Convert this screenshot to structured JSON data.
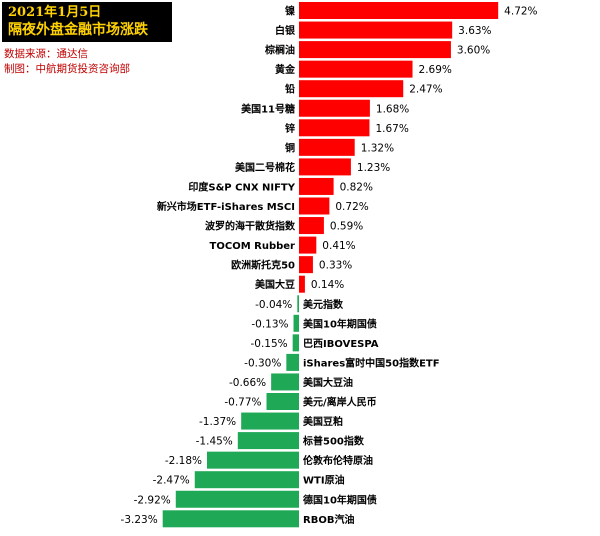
{
  "header": {
    "date": "2021年1月5日",
    "title": "隔夜外盘金融市场涨跌",
    "source": "数据来源：通达信",
    "maker": "制图：中航期货投资咨询部"
  },
  "colors": {
    "positive": "#ff0000",
    "negative": "#1fa855",
    "title_bg": "#000000",
    "title_fg": "#ffd200",
    "source_text": "#c00000"
  },
  "chart_data": {
    "type": "bar",
    "orientation": "horizontal",
    "value_unit": "%",
    "grid": false,
    "legend": "none",
    "categories": [
      "镍",
      "白银",
      "棕榈油",
      "黄金",
      "铅",
      "美国11号糖",
      "锌",
      "铜",
      "美国二号棉花",
      "印度S&P CNX NIFTY",
      "新兴市场ETF-iShares MSCI",
      "波罗的海干散货指数",
      "TOCOM Rubber",
      "欧洲斯托克50",
      "美国大豆",
      "美元指数",
      "美国10年期国债",
      "巴西IBOVESPA",
      "iShares富时中国50指数ETF",
      "美国大豆油",
      "美元/离岸人民币",
      "美国豆粕",
      "标普500指数",
      "伦敦布伦特原油",
      "WTI原油",
      "德国10年期国债",
      "RBOB汽油"
    ],
    "values": [
      4.72,
      3.63,
      3.6,
      2.69,
      2.47,
      1.68,
      1.67,
      1.32,
      1.23,
      0.82,
      0.72,
      0.59,
      0.41,
      0.33,
      0.14,
      -0.04,
      -0.13,
      -0.15,
      -0.3,
      -0.66,
      -0.77,
      -1.37,
      -1.45,
      -2.18,
      -2.47,
      -2.92,
      -3.23
    ],
    "labels": [
      "4.72%",
      "3.63%",
      "3.60%",
      "2.69%",
      "2.47%",
      "1.68%",
      "1.67%",
      "1.32%",
      "1.23%",
      "0.82%",
      "0.72%",
      "0.59%",
      "0.41%",
      "0.33%",
      "0.14%",
      "-0.04%",
      "-0.13%",
      "-0.15%",
      "-0.30%",
      "-0.66%",
      "-0.77%",
      "-1.37%",
      "-1.45%",
      "-2.18%",
      "-2.47%",
      "-2.92%",
      "-3.23%"
    ]
  }
}
